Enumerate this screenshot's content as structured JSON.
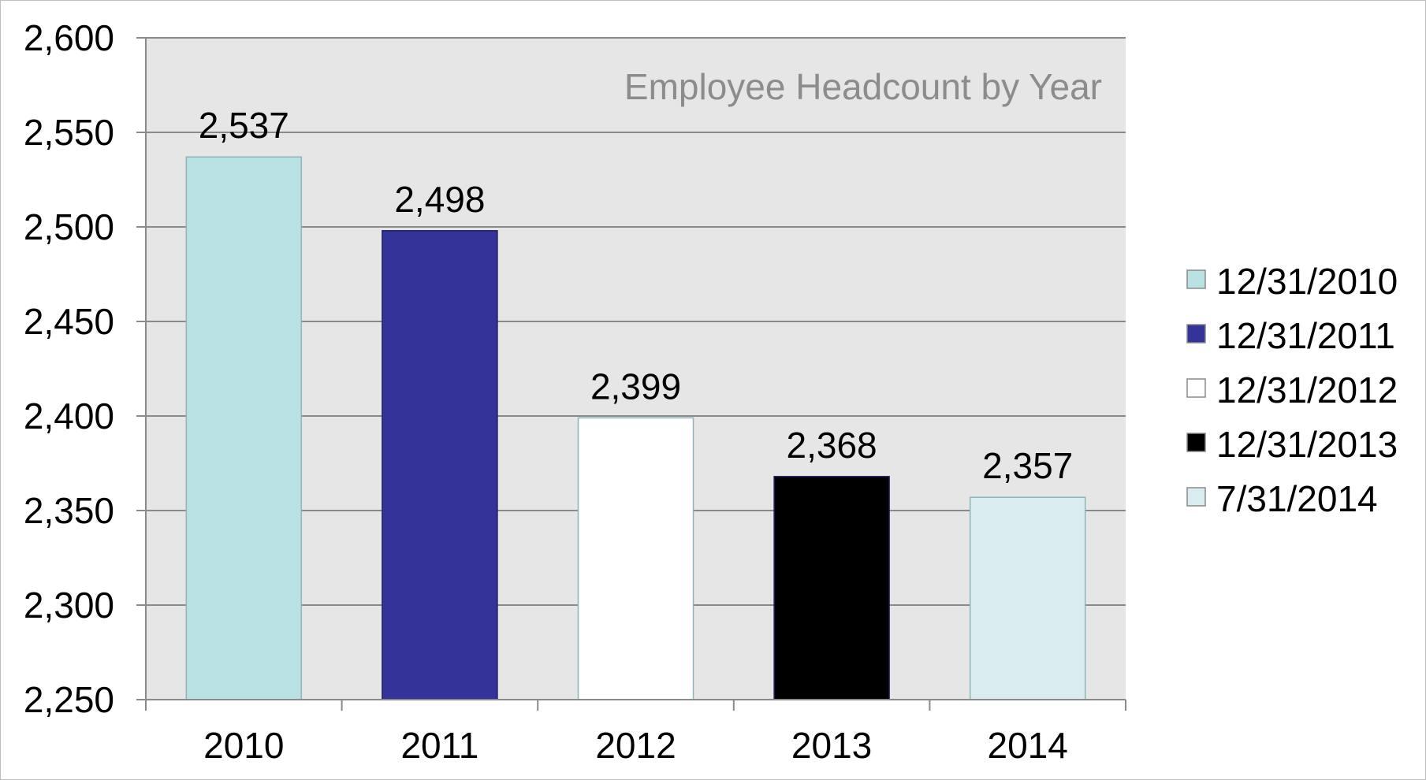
{
  "chart_data": {
    "type": "bar",
    "title": "Employee Headcount by Year",
    "xlabel": "",
    "ylabel": "",
    "categories": [
      "2010",
      "2011",
      "2012",
      "2013",
      "2014"
    ],
    "values": [
      2537,
      2498,
      2399,
      2368,
      2357
    ],
    "data_labels": [
      "2,537",
      "2,498",
      "2,399",
      "2,368",
      "2,357"
    ],
    "ylim": [
      2250,
      2600
    ],
    "y_ticks": [
      2250,
      2300,
      2350,
      2400,
      2450,
      2500,
      2550,
      2600
    ],
    "y_tick_labels": [
      "2,250",
      "2,300",
      "2,350",
      "2,400",
      "2,450",
      "2,500",
      "2,550",
      "2,600"
    ],
    "grid": true,
    "legend_position": "right",
    "legend": [
      {
        "label": "12/31/2010",
        "color": "#b9e0e3"
      },
      {
        "label": "12/31/2011",
        "color": "#333399"
      },
      {
        "label": "12/31/2012",
        "color": "#ffffff"
      },
      {
        "label": "12/31/2013",
        "color": "#000000"
      },
      {
        "label": "7/31/2014",
        "color": "#d9ecef"
      }
    ],
    "bar_colors": [
      "#b9e0e3",
      "#333399",
      "#ffffff",
      "#000000",
      "#d9ecef"
    ],
    "plot_background": "#e6e6e6",
    "title_color": "#8c8c8c"
  }
}
